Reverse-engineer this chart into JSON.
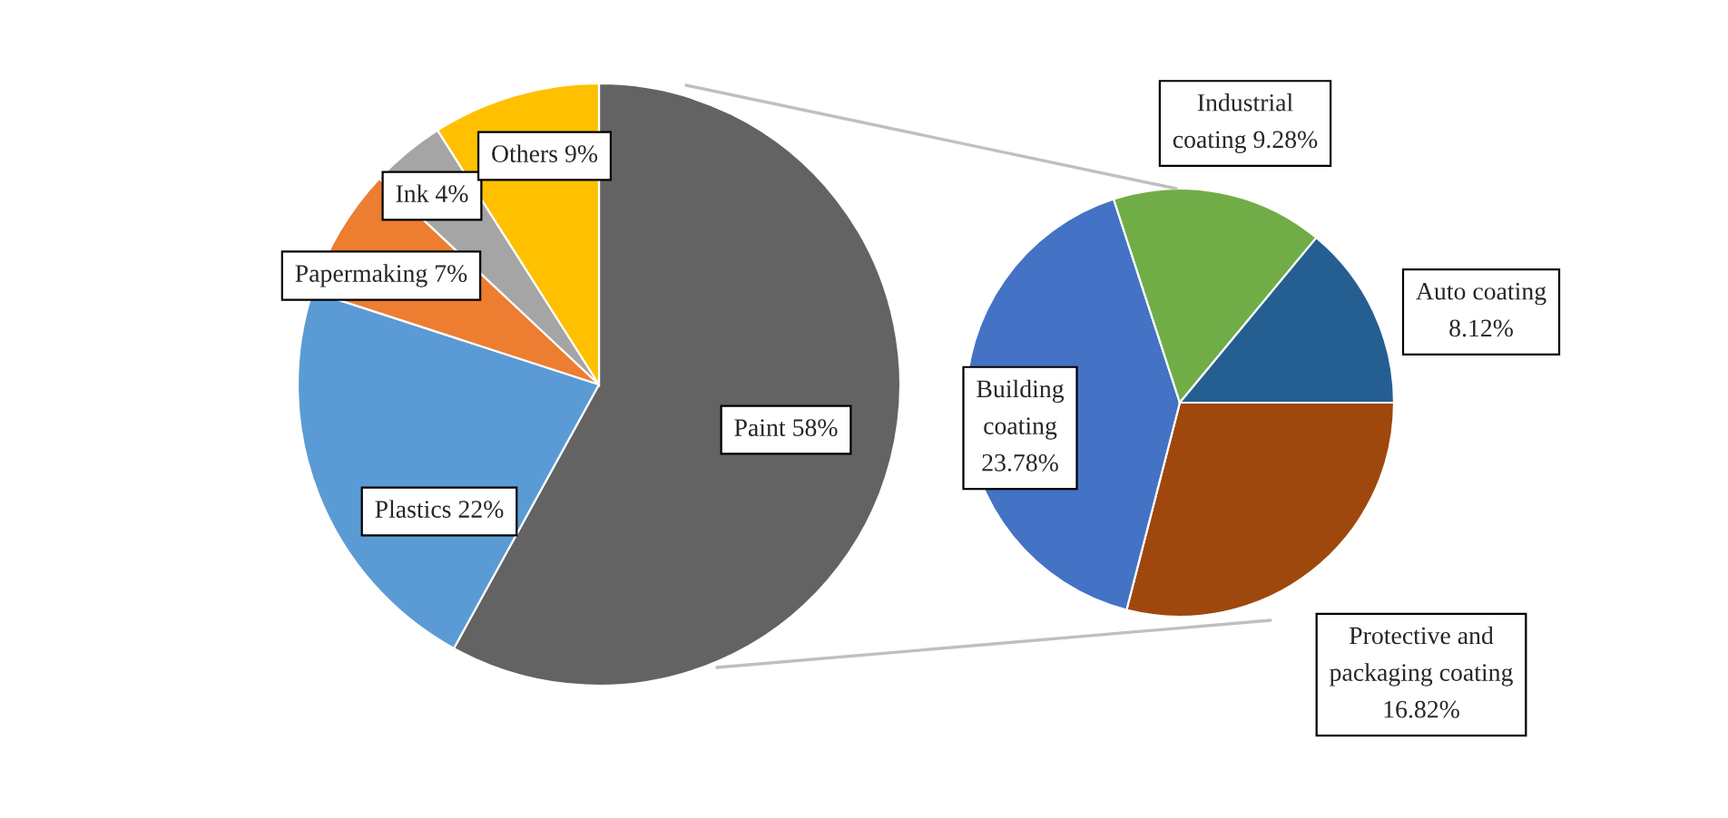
{
  "chart_data": [
    {
      "type": "pie",
      "categories": [
        "Paint",
        "Plastics",
        "Papermaking",
        "Ink",
        "Others"
      ],
      "values": [
        58,
        22,
        7,
        4,
        9
      ],
      "value_labels": [
        "58%",
        "22%",
        "7%",
        "4%",
        "9%"
      ],
      "colors": [
        "#636363",
        "#5b9bd5",
        "#ed7d31",
        "#a5a5a5",
        "#ffc000"
      ]
    },
    {
      "type": "pie",
      "categories": [
        "Protective and\npackaging coating",
        "Building\ncoating",
        "Industrial\ncoating",
        "Auto coating"
      ],
      "values": [
        16.82,
        23.78,
        9.28,
        8.12
      ],
      "value_labels": [
        "16.82%",
        "23.78%",
        "9.28%",
        "8.12%"
      ],
      "colors": [
        "#9e480e",
        "#4472c4",
        "#70ad47",
        "#255e91"
      ]
    }
  ]
}
